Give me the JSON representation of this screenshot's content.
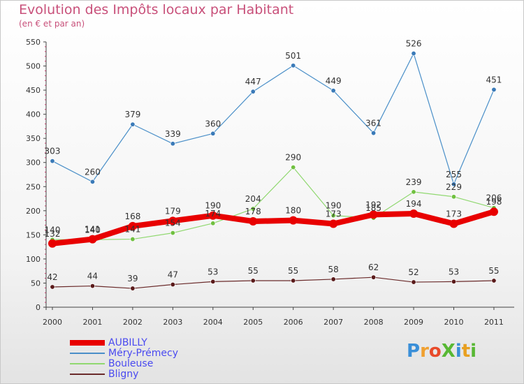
{
  "title": "Evolution des Impôts locaux par Habitant",
  "subtitle": "(en € et par an)",
  "brand": {
    "text": "ProXiti",
    "letters": [
      {
        "ch": "P",
        "color": "#3a8fd8"
      },
      {
        "ch": "r",
        "color": "#f0a030"
      },
      {
        "ch": "o",
        "color": "#e84a2a"
      },
      {
        "ch": "X",
        "color": "#58b834"
      },
      {
        "ch": "i",
        "color": "#3a8fd8"
      },
      {
        "ch": "t",
        "color": "#e8a020"
      },
      {
        "ch": "i",
        "color": "#58b834"
      }
    ]
  },
  "chart_data": {
    "type": "line",
    "title": "Evolution des Impôts locaux par Habitant",
    "subtitle": "(en € et par an)",
    "categories": [
      "2000",
      "2001",
      "2002",
      "2003",
      "2004",
      "2005",
      "2006",
      "2007",
      "2008",
      "2009",
      "2010",
      "2011"
    ],
    "ylim": [
      0,
      550
    ],
    "yticks": [
      0,
      50,
      100,
      150,
      200,
      250,
      300,
      350,
      400,
      450,
      500,
      550
    ],
    "grid": false,
    "legend_position": "bottom-left",
    "series": [
      {
        "name": "Méry-Prémecy",
        "color": "#4a8fc8",
        "marker_color": "#3a7ab8",
        "width": 1.2,
        "values": [
          303,
          260,
          379,
          339,
          360,
          447,
          501,
          449,
          361,
          526,
          255,
          451
        ],
        "labels": [
          "303",
          "260",
          "379",
          "339",
          "360",
          "447",
          "501",
          "449",
          "361",
          "526",
          "255",
          "451"
        ]
      },
      {
        "name": "Bouleuse",
        "color": "#90d870",
        "marker_color": "#70c040",
        "width": 1.2,
        "values": [
          140,
          140,
          141,
          154,
          174,
          204,
          290,
          190,
          185,
          239,
          229,
          206
        ],
        "labels": [
          "140",
          "140",
          "141",
          "154",
          "174",
          "204",
          "290",
          "190",
          "185",
          "239",
          "229",
          "206"
        ]
      },
      {
        "name": "AUBILLY",
        "color": "#e80000",
        "marker_color": "#e80000",
        "width": 8,
        "values": [
          132,
          141,
          168,
          179,
          190,
          178,
          180,
          173,
          192,
          194,
          173,
          198
        ],
        "labels": [
          "132",
          "141",
          "168",
          "179",
          "190",
          "178",
          "180",
          "173",
          "192",
          "194",
          "173",
          "198"
        ]
      },
      {
        "name": "Bligny",
        "color": "#6a2a2a",
        "marker_color": "#5a1a1a",
        "width": 1.2,
        "values": [
          42,
          44,
          39,
          47,
          53,
          55,
          55,
          58,
          62,
          52,
          53,
          55
        ],
        "labels": [
          "42",
          "44",
          "39",
          "47",
          "53",
          "55",
          "55",
          "58",
          "62",
          "52",
          "53",
          "55"
        ]
      }
    ],
    "legend": [
      {
        "name": "AUBILLY",
        "color": "#e80000",
        "thickness": 8
      },
      {
        "name": "Méry-Prémecy",
        "color": "#4a8fc8",
        "thickness": 2
      },
      {
        "name": "Bouleuse",
        "color": "#90d870",
        "thickness": 2
      },
      {
        "name": "Bligny",
        "color": "#6a2a2a",
        "thickness": 2
      }
    ]
  }
}
